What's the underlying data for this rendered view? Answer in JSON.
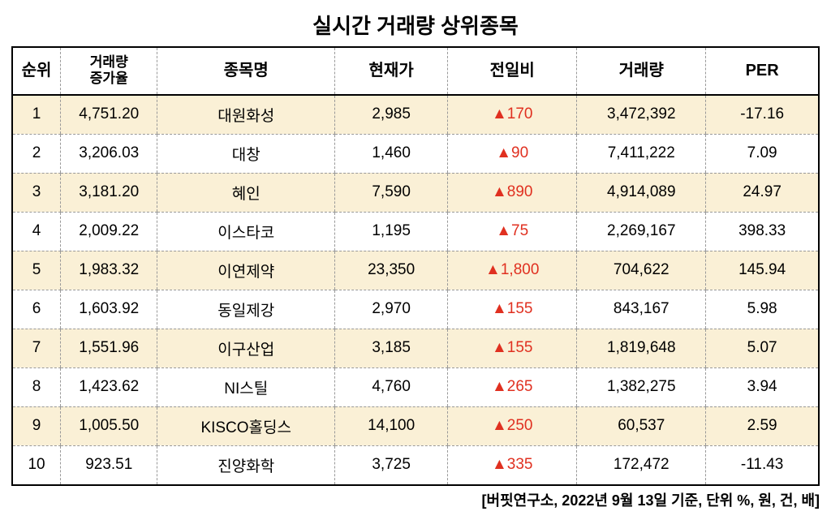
{
  "title": "실시간 거래량 상위종목",
  "footnote": "[버핏연구소, 2022년 9월 13일 기준, 단위 %, 원, 건, 배]",
  "change_color": "#e03020",
  "odd_row_bg": "#faf0d6",
  "even_row_bg": "#ffffff",
  "border_color": "#000000",
  "dash_color": "#999999",
  "columns": {
    "rank": {
      "label": "순위",
      "width": "6%"
    },
    "growth": {
      "label": "거래량\n증가율",
      "width": "12%"
    },
    "name": {
      "label": "종목명",
      "width": "22%"
    },
    "price": {
      "label": "현재가",
      "width": "14%"
    },
    "change": {
      "label": "전일비",
      "width": "16%"
    },
    "volume": {
      "label": "거래량",
      "width": "16%"
    },
    "per": {
      "label": "PER",
      "width": "14%"
    }
  },
  "rows": [
    {
      "rank": "1",
      "growth": "4,751.20",
      "name": "대원화성",
      "price": "2,985",
      "change": "▲170",
      "volume": "3,472,392",
      "per": "-17.16"
    },
    {
      "rank": "2",
      "growth": "3,206.03",
      "name": "대창",
      "price": "1,460",
      "change": "▲90",
      "volume": "7,411,222",
      "per": "7.09"
    },
    {
      "rank": "3",
      "growth": "3,181.20",
      "name": "혜인",
      "price": "7,590",
      "change": "▲890",
      "volume": "4,914,089",
      "per": "24.97"
    },
    {
      "rank": "4",
      "growth": "2,009.22",
      "name": "이스타코",
      "price": "1,195",
      "change": "▲75",
      "volume": "2,269,167",
      "per": "398.33"
    },
    {
      "rank": "5",
      "growth": "1,983.32",
      "name": "이연제약",
      "price": "23,350",
      "change": "▲1,800",
      "volume": "704,622",
      "per": "145.94"
    },
    {
      "rank": "6",
      "growth": "1,603.92",
      "name": "동일제강",
      "price": "2,970",
      "change": "▲155",
      "volume": "843,167",
      "per": "5.98"
    },
    {
      "rank": "7",
      "growth": "1,551.96",
      "name": "이구산업",
      "price": "3,185",
      "change": "▲155",
      "volume": "1,819,648",
      "per": "5.07"
    },
    {
      "rank": "8",
      "growth": "1,423.62",
      "name": "NI스틸",
      "price": "4,760",
      "change": "▲265",
      "volume": "1,382,275",
      "per": "3.94"
    },
    {
      "rank": "9",
      "growth": "1,005.50",
      "name": "KISCO홀딩스",
      "price": "14,100",
      "change": "▲250",
      "volume": "60,537",
      "per": "2.59"
    },
    {
      "rank": "10",
      "growth": "923.51",
      "name": "진양화학",
      "price": "3,725",
      "change": "▲335",
      "volume": "172,472",
      "per": "-11.43"
    }
  ]
}
